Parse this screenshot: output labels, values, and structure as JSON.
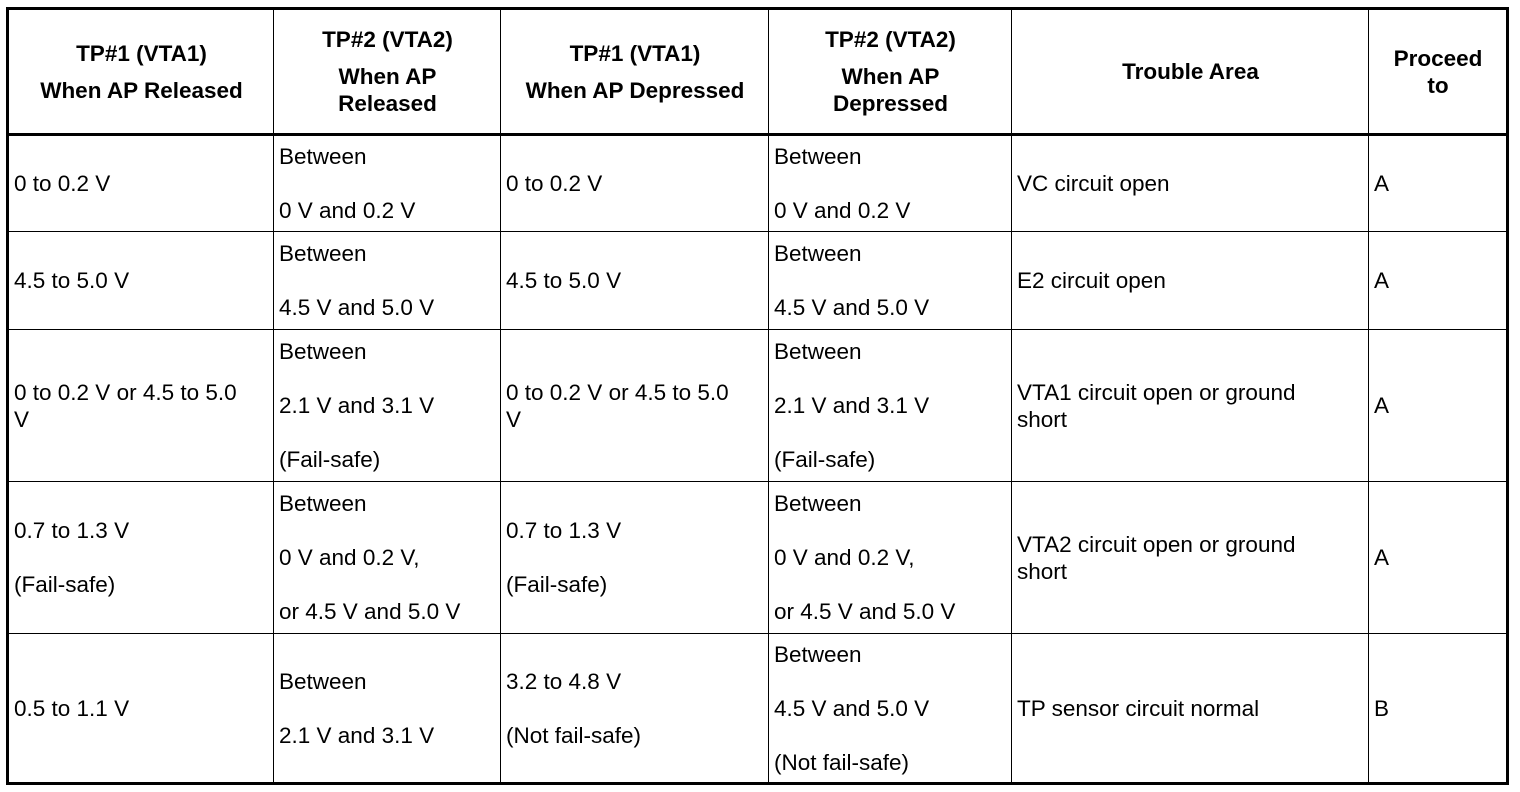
{
  "table": {
    "headers": [
      {
        "lines": [
          "TP#1 (VTA1)",
          "",
          "When AP Released"
        ]
      },
      {
        "lines": [
          "TP#2 (VTA2)",
          "",
          "When AP",
          "Released"
        ]
      },
      {
        "lines": [
          "TP#1 (VTA1)",
          "",
          "When AP Depressed"
        ]
      },
      {
        "lines": [
          "TP#2 (VTA2)",
          "",
          "When AP",
          "Depressed"
        ]
      },
      {
        "lines": [
          "Trouble Area"
        ]
      },
      {
        "lines": [
          "Proceed",
          "to"
        ]
      }
    ],
    "rows": [
      {
        "tp1_released": [
          "0 to 0.2 V"
        ],
        "tp2_released": [
          "Between",
          "",
          "0 V and 0.2 V"
        ],
        "tp1_depressed": [
          "0 to 0.2 V"
        ],
        "tp2_depressed": [
          "Between",
          "",
          "0 V and 0.2 V"
        ],
        "trouble_area": [
          "VC circuit open"
        ],
        "proceed_to": [
          "A"
        ]
      },
      {
        "tp1_released": [
          "4.5 to 5.0 V"
        ],
        "tp2_released": [
          "Between",
          "",
          "4.5 V and 5.0 V"
        ],
        "tp1_depressed": [
          "4.5 to 5.0 V"
        ],
        "tp2_depressed": [
          "Between",
          "",
          "4.5 V and 5.0 V"
        ],
        "trouble_area": [
          "E2 circuit open"
        ],
        "proceed_to": [
          "A"
        ]
      },
      {
        "tp1_released": [
          "0 to 0.2 V or 4.5 to 5.0",
          "V"
        ],
        "tp2_released": [
          "Between",
          "",
          "2.1 V and 3.1 V",
          "",
          "(Fail-safe)"
        ],
        "tp1_depressed": [
          "0 to 0.2 V or 4.5 to 5.0",
          "V"
        ],
        "tp2_depressed": [
          "Between",
          "",
          "2.1 V and 3.1 V",
          "",
          "(Fail-safe)"
        ],
        "trouble_area": [
          "VTA1 circuit open or ground",
          "short"
        ],
        "proceed_to": [
          "A"
        ]
      },
      {
        "tp1_released": [
          "0.7 to 1.3 V",
          "",
          "(Fail-safe)"
        ],
        "tp2_released": [
          "Between",
          "",
          "0 V and 0.2 V,",
          "",
          "or 4.5 V and 5.0 V"
        ],
        "tp1_depressed": [
          "0.7 to 1.3 V",
          "",
          "(Fail-safe)"
        ],
        "tp2_depressed": [
          "Between",
          "",
          "0 V and 0.2 V,",
          "",
          "or 4.5 V and 5.0 V"
        ],
        "trouble_area": [
          "VTA2 circuit open or ground",
          "short"
        ],
        "proceed_to": [
          "A"
        ]
      },
      {
        "tp1_released": [
          "0.5 to 1.1 V"
        ],
        "tp2_released": [
          "Between",
          "",
          "2.1 V and 3.1 V"
        ],
        "tp1_depressed": [
          "3.2 to 4.8 V",
          "",
          "(Not fail-safe)"
        ],
        "tp2_depressed": [
          "Between",
          "",
          "4.5 V and 5.0 V",
          "",
          "(Not fail-safe)"
        ],
        "trouble_area": [
          "TP sensor circuit normal"
        ],
        "proceed_to": [
          "B"
        ]
      }
    ]
  }
}
